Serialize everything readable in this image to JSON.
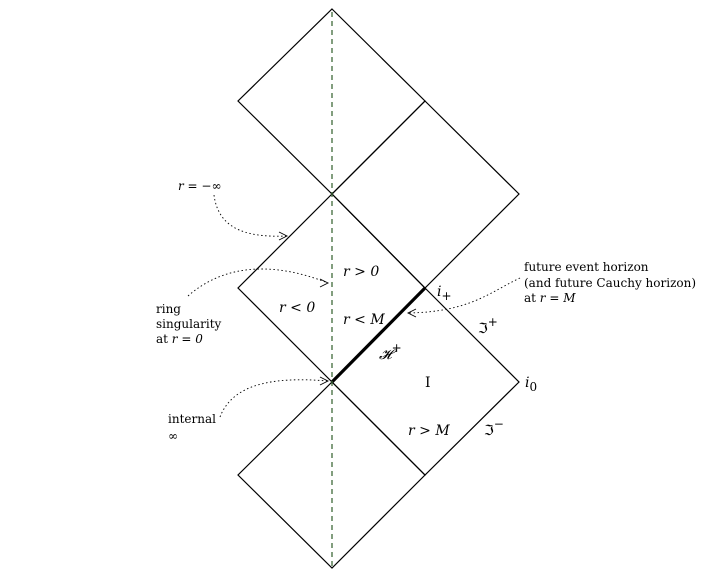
{
  "regions": {
    "r_positive": "r > 0",
    "r_negative": "r < 0",
    "r_less_m": "r < M",
    "r_greater_m": "r > M",
    "region_one": "I"
  },
  "boundaries": {
    "horizon": "𝓗",
    "horizon_sup": "+",
    "i_plus": "i",
    "i_plus_sub": "+",
    "i_zero": "i",
    "i_zero_sub": "0",
    "scri_plus": "ℑ",
    "scri_plus_sup": "+",
    "scri_minus": "ℑ",
    "scri_minus_sup": "−"
  },
  "annotations": {
    "r_minus_infinity": "r = −∞",
    "ring_line1": "ring",
    "ring_line2": "singularity",
    "ring_line3_prefix": "at ",
    "ring_line3_math": "r = 0",
    "internal_line1": "internal",
    "internal_line2": "∞",
    "horizon_line1": "future event horizon",
    "horizon_line2": "(and future Cauchy horizon)",
    "horizon_line3_prefix": "at ",
    "horizon_line3_math": "r = M"
  },
  "colors": {
    "axis": "#3f6a3a",
    "lines": "#000000"
  }
}
